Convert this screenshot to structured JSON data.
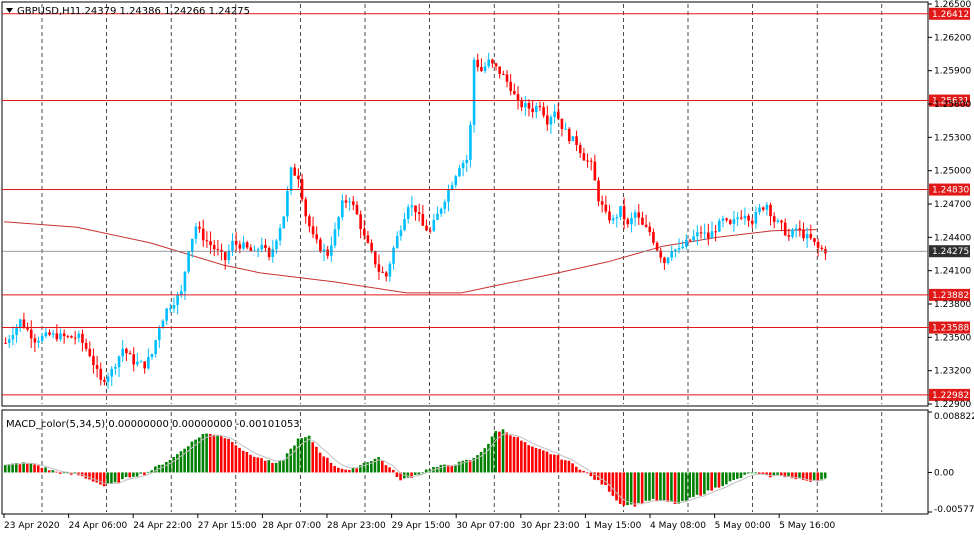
{
  "header": {
    "menu_icon": "triangle-down-icon",
    "symbol": "GBPUSD,H1",
    "ohlc": "1.24379 1.24386 1.24266 1.24275"
  },
  "macd_header": {
    "label": "MACD_color(5,34,5) 0.00000000 0.00000000 -0.00101053"
  },
  "colors": {
    "bull": "#00bfff",
    "bear": "#ff0000",
    "ma": "#c83232",
    "level": "#e01818",
    "macd_up": "#008000",
    "macd_down": "#ff0000",
    "signal": "#c0c0c0",
    "current": "#6f7c86"
  },
  "chart_data": [
    {
      "type": "candlestick",
      "symbol": "GBPUSD",
      "timeframe": "H1",
      "ylim": [
        1.229,
        1.265
      ],
      "y_ticks": [
        "1.26500",
        "1.26200",
        "1.25900",
        "1.25600",
        "1.25300",
        "1.25000",
        "1.24700",
        "1.24400",
        "1.24100",
        "1.23800",
        "1.23500",
        "1.23200",
        "1.22900"
      ],
      "x_ticks": [
        "23 Apr 2020",
        "24 Apr 06:00",
        "24 Apr 22:00",
        "27 Apr 15:00",
        "28 Apr 07:00",
        "28 Apr 23:00",
        "29 Apr 15:00",
        "30 Apr 07:00",
        "30 Apr 23:00",
        "1 May 15:00",
        "4 May 08:00",
        "5 May 00:00",
        "5 May 16:00"
      ],
      "levels": [
        {
          "value": 1.26412,
          "label": "1.26412"
        },
        {
          "value": 1.25631,
          "label": "1.25631"
        },
        {
          "value": 1.2483,
          "label": "1.24830"
        },
        {
          "value": 1.23882,
          "label": "1.23882"
        },
        {
          "value": 1.23588,
          "label": "1.23588"
        },
        {
          "value": 1.22982,
          "label": "1.22982"
        }
      ],
      "current_price": {
        "value": 1.24275,
        "label": "1.24275"
      },
      "close_path": [
        [
          0,
          1.2345
        ],
        [
          4,
          1.2365
        ],
        [
          8,
          1.2348
        ],
        [
          12,
          1.2352
        ],
        [
          17,
          1.235
        ],
        [
          20,
          1.235
        ],
        [
          23,
          1.2335
        ],
        [
          26,
          1.231
        ],
        [
          29,
          1.232
        ],
        [
          32,
          1.234
        ],
        [
          35,
          1.2328
        ],
        [
          38,
          1.2325
        ],
        [
          40,
          1.2335
        ],
        [
          42,
          1.236
        ],
        [
          44,
          1.2375
        ],
        [
          48,
          1.239
        ],
        [
          50,
          1.243
        ],
        [
          52,
          1.245
        ],
        [
          54,
          1.244
        ],
        [
          57,
          1.243
        ],
        [
          60,
          1.242
        ],
        [
          62,
          1.2435
        ],
        [
          65,
          1.2432
        ],
        [
          68,
          1.2425
        ],
        [
          70,
          1.2435
        ],
        [
          72,
          1.242
        ],
        [
          76,
          1.246
        ],
        [
          78,
          1.25
        ],
        [
          80,
          1.2495
        ],
        [
          82,
          1.246
        ],
        [
          84,
          1.244
        ],
        [
          86,
          1.243
        ],
        [
          88,
          1.2425
        ],
        [
          90,
          1.2445
        ],
        [
          92,
          1.247
        ],
        [
          94,
          1.2475
        ],
        [
          96,
          1.246
        ],
        [
          98,
          1.244
        ],
        [
          100,
          1.2425
        ],
        [
          102,
          1.241
        ],
        [
          104,
          1.2405
        ],
        [
          106,
          1.243
        ],
        [
          108,
          1.245
        ],
        [
          110,
          1.247
        ],
        [
          112,
          1.2465
        ],
        [
          114,
          1.245
        ],
        [
          116,
          1.2445
        ],
        [
          118,
          1.246
        ],
        [
          120,
          1.2475
        ],
        [
          122,
          1.249
        ],
        [
          124,
          1.2505
        ],
        [
          126,
          1.251
        ],
        [
          127,
          1.254
        ],
        [
          128,
          1.26
        ],
        [
          130,
          1.259
        ],
        [
          132,
          1.2598
        ],
        [
          134,
          1.2592
        ],
        [
          136,
          1.2585
        ],
        [
          138,
          1.2575
        ],
        [
          140,
          1.256
        ],
        [
          142,
          1.2558
        ],
        [
          144,
          1.2555
        ],
        [
          146,
          1.256
        ],
        [
          148,
          1.2545
        ],
        [
          150,
          1.2555
        ],
        [
          152,
          1.254
        ],
        [
          154,
          1.253
        ],
        [
          156,
          1.2525
        ],
        [
          158,
          1.2512
        ],
        [
          160,
          1.2505
        ],
        [
          162,
          1.2475
        ],
        [
          164,
          1.246
        ],
        [
          166,
          1.2455
        ],
        [
          168,
          1.2465
        ],
        [
          170,
          1.245
        ],
        [
          172,
          1.2462
        ],
        [
          174,
          1.245
        ],
        [
          176,
          1.2445
        ],
        [
          178,
          1.243
        ],
        [
          180,
          1.2418
        ],
        [
          182,
          1.243
        ],
        [
          184,
          1.2428
        ],
        [
          186,
          1.2435
        ],
        [
          188,
          1.244
        ],
        [
          190,
          1.2445
        ],
        [
          192,
          1.244
        ],
        [
          194,
          1.2448
        ],
        [
          196,
          1.2455
        ],
        [
          198,
          1.245
        ],
        [
          200,
          1.2458
        ],
        [
          202,
          1.2462
        ],
        [
          204,
          1.2455
        ],
        [
          206,
          1.2465
        ],
        [
          208,
          1.247
        ],
        [
          210,
          1.2455
        ],
        [
          212,
          1.245
        ],
        [
          214,
          1.244
        ],
        [
          216,
          1.2448
        ],
        [
          218,
          1.2442
        ],
        [
          220,
          1.2438
        ],
        [
          222,
          1.243
        ],
        [
          224,
          1.2428
        ]
      ],
      "ma_path": [
        [
          0,
          1.2454
        ],
        [
          20,
          1.2449
        ],
        [
          40,
          1.2435
        ],
        [
          60,
          1.2415
        ],
        [
          70,
          1.2408
        ],
        [
          90,
          1.24
        ],
        [
          110,
          1.239
        ],
        [
          125,
          1.239
        ],
        [
          135,
          1.2397
        ],
        [
          150,
          1.2407
        ],
        [
          165,
          1.2418
        ],
        [
          180,
          1.2432
        ],
        [
          195,
          1.244
        ],
        [
          210,
          1.2446
        ],
        [
          222,
          1.2447
        ]
      ]
    },
    {
      "type": "bar",
      "name": "MACD_color(5,34,5)",
      "values_shown": [
        "0.00000000",
        "0.00000000",
        "-0.00101053"
      ],
      "ylim": [
        -0.005772,
        0.008822
      ],
      "y_ticks": [
        "0.008822",
        "0.00",
        "-0.005772"
      ],
      "histogram_path": [
        [
          0,
          0.001
        ],
        [
          4,
          0.0014
        ],
        [
          8,
          0.0012
        ],
        [
          12,
          0.0004
        ],
        [
          16,
          -0.0002
        ],
        [
          20,
          -0.0004
        ],
        [
          24,
          -0.0012
        ],
        [
          27,
          -0.002
        ],
        [
          30,
          -0.0016
        ],
        [
          34,
          -0.0006
        ],
        [
          38,
          -0.0002
        ],
        [
          42,
          0.001
        ],
        [
          46,
          0.0022
        ],
        [
          50,
          0.004
        ],
        [
          54,
          0.0056
        ],
        [
          58,
          0.0056
        ],
        [
          62,
          0.0046
        ],
        [
          66,
          0.0028
        ],
        [
          70,
          0.002
        ],
        [
          74,
          0.0012
        ],
        [
          76,
          0.002
        ],
        [
          80,
          0.0048
        ],
        [
          83,
          0.0052
        ],
        [
          86,
          0.003
        ],
        [
          90,
          0.001
        ],
        [
          94,
          0.0002
        ],
        [
          98,
          0.0014
        ],
        [
          102,
          0.0022
        ],
        [
          106,
          0.0002
        ],
        [
          108,
          -0.0012
        ],
        [
          112,
          -0.0004
        ],
        [
          116,
          0.0006
        ],
        [
          120,
          0.001
        ],
        [
          124,
          0.0014
        ],
        [
          128,
          0.002
        ],
        [
          132,
          0.0042
        ],
        [
          134,
          0.006
        ],
        [
          136,
          0.0062
        ],
        [
          140,
          0.005
        ],
        [
          144,
          0.0036
        ],
        [
          150,
          0.0026
        ],
        [
          156,
          0.001
        ],
        [
          160,
          -0.0006
        ],
        [
          164,
          -0.002
        ],
        [
          168,
          -0.0046
        ],
        [
          172,
          -0.0048
        ],
        [
          176,
          -0.004
        ],
        [
          180,
          -0.0042
        ],
        [
          184,
          -0.0046
        ],
        [
          188,
          -0.0036
        ],
        [
          192,
          -0.0028
        ],
        [
          196,
          -0.0018
        ],
        [
          200,
          -0.001
        ],
        [
          204,
          0.0
        ],
        [
          208,
          -0.0006
        ],
        [
          212,
          -0.0004
        ],
        [
          216,
          -0.001
        ],
        [
          220,
          -0.0012
        ],
        [
          224,
          -0.001
        ]
      ]
    }
  ]
}
